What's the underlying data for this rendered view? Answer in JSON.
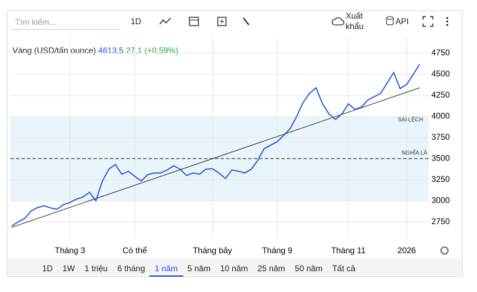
{
  "toolbar": {
    "search": "Tìm kiếm...",
    "interval": "1D",
    "export": "Xuất khẩu",
    "api": "API"
  },
  "header": {
    "name": "Vàng (USD/tấn ounce)",
    "price": "4613,5",
    "change": "27,1 (+0,59%)"
  },
  "ranges": {
    "items": [
      "1D",
      "1W",
      "1 triệu",
      "6 tháng",
      "1 năm",
      "5 năm",
      "10 năm",
      "25 năm",
      "50 năm",
      "Tất cả"
    ],
    "selected": "1 năm"
  },
  "chart_data": {
    "type": "line",
    "series": [
      {
        "name": "Vàng (USD/tấn ounce)",
        "color": "#1a56db",
        "values": [
          2700,
          2750,
          2790,
          2880,
          2920,
          2940,
          2915,
          2900,
          2955,
          2980,
          3020,
          3045,
          3100,
          3000,
          3235,
          3375,
          3430,
          3315,
          3350,
          3290,
          3235,
          3310,
          3330,
          3330,
          3365,
          3415,
          3375,
          3300,
          3330,
          3315,
          3375,
          3380,
          3330,
          3265,
          3365,
          3350,
          3330,
          3375,
          3480,
          3620,
          3660,
          3700,
          3775,
          3855,
          4000,
          4165,
          4275,
          4340,
          4150,
          4030,
          3965,
          4030,
          4150,
          4085,
          4110,
          4195,
          4235,
          4275,
          4400,
          4520,
          4330,
          4380,
          4495,
          4620
        ]
      }
    ],
    "xlim": [
      0,
      63
    ],
    "xticks": [
      {
        "value": 9,
        "label": "Tháng 3"
      },
      {
        "value": 19,
        "label": "Có thể"
      },
      {
        "value": 31,
        "label": "Tháng bảy"
      },
      {
        "value": 41,
        "label": "Tháng 9"
      },
      {
        "value": 52,
        "label": "Tháng 11"
      },
      {
        "value": 61,
        "label": "2026"
      }
    ],
    "ylim": [
      2550,
      4930
    ],
    "yticks": [
      2750,
      3000,
      3250,
      3500,
      3750,
      4000,
      4250,
      4500,
      4750
    ],
    "grid": true,
    "trendline": {
      "values": [
        2685,
        4340
      ],
      "color": "#333333"
    },
    "band": {
      "from": 3000,
      "to": 4000,
      "label": "SAI LỆCH",
      "color": "#eaf4fb"
    },
    "mean": {
      "value": 3500,
      "label": "NGHĨA LÀ"
    }
  }
}
